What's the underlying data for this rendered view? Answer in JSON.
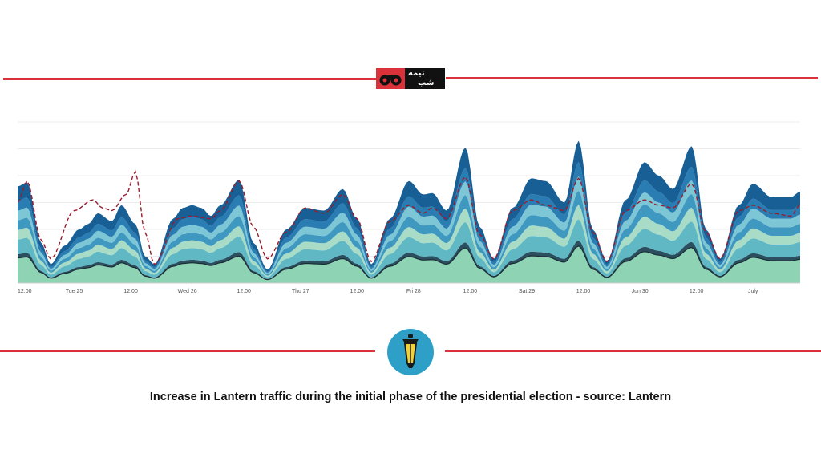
{
  "brand": {
    "logo_text_top": "نیمه",
    "logo_text_bottom": "شب",
    "logo_icon": "binoculars-icon",
    "badge_icon": "lantern-icon",
    "accent": "#d9323a",
    "badge_color": "#2ea0c8"
  },
  "caption": "Increase in Lantern traffic during the initial phase of the presidential election - source: Lantern",
  "chart_data": {
    "type": "area",
    "stacked": true,
    "grid": true,
    "legend": "none",
    "title": "",
    "xlabel": "",
    "ylabel": "",
    "x_ticks": [
      "12:00",
      "Tue 25",
      "12:00",
      "Wed 26",
      "12:00",
      "Thu 27",
      "12:00",
      "Fri 28",
      "12:00",
      "Sat 29",
      "12:00",
      "Jun 30",
      "12:00",
      "July"
    ],
    "x_hours": [
      0,
      12,
      24,
      36,
      48,
      60,
      72,
      84,
      96,
      108,
      120,
      132,
      144,
      156
    ],
    "x_range": [
      0,
      166
    ],
    "ylim": [
      0,
      6
    ],
    "total_keypoints": [
      [
        0,
        3.6
      ],
      [
        2,
        3.75
      ],
      [
        5,
        1.5
      ],
      [
        7,
        0.7
      ],
      [
        10,
        1.4
      ],
      [
        13,
        2.0
      ],
      [
        15,
        2.2
      ],
      [
        17,
        2.6
      ],
      [
        20,
        2.3
      ],
      [
        22,
        2.9
      ],
      [
        25,
        2.2
      ],
      [
        27,
        1.0
      ],
      [
        29,
        0.7
      ],
      [
        33,
        2.4
      ],
      [
        35,
        2.8
      ],
      [
        37,
        2.9
      ],
      [
        39,
        2.8
      ],
      [
        41,
        2.5
      ],
      [
        43,
        2.9
      ],
      [
        47,
        3.85
      ],
      [
        50,
        1.5
      ],
      [
        53,
        0.5
      ],
      [
        57,
        2.0
      ],
      [
        61,
        2.8
      ],
      [
        65,
        2.7
      ],
      [
        69,
        3.5
      ],
      [
        72,
        2.4
      ],
      [
        75,
        0.7
      ],
      [
        79,
        2.4
      ],
      [
        83,
        3.8
      ],
      [
        86,
        3.3
      ],
      [
        88,
        3.35
      ],
      [
        91,
        2.7
      ],
      [
        95,
        5.05
      ],
      [
        98,
        2.1
      ],
      [
        101,
        0.9
      ],
      [
        105,
        2.8
      ],
      [
        109,
        3.9
      ],
      [
        112,
        3.8
      ],
      [
        116,
        3.0
      ],
      [
        119,
        5.3
      ],
      [
        122,
        2.0
      ],
      [
        125,
        0.8
      ],
      [
        129,
        3.1
      ],
      [
        133,
        4.5
      ],
      [
        136,
        4.0
      ],
      [
        139,
        3.5
      ],
      [
        143,
        5.1
      ],
      [
        146,
        2.0
      ],
      [
        149,
        0.9
      ],
      [
        153,
        2.9
      ],
      [
        156,
        3.7
      ],
      [
        160,
        3.2
      ],
      [
        164,
        3.2
      ],
      [
        166,
        3.4
      ]
    ],
    "series": [
      {
        "values_share": 0.26
      },
      {
        "values_share": 0.04
      },
      {
        "values_share": 0.15
      },
      {
        "values_share": 0.1
      },
      {
        "values_share": 0.1
      },
      {
        "values_share": 0.1
      },
      {
        "values_share": 0.1
      },
      {
        "values_share": 0.15
      }
    ],
    "dashed_reference_keypoints": [
      [
        0,
        3.0
      ],
      [
        2,
        3.8
      ],
      [
        5,
        1.6
      ],
      [
        7,
        0.9
      ],
      [
        12,
        2.7
      ],
      [
        16,
        3.1
      ],
      [
        18,
        2.8
      ],
      [
        20,
        2.7
      ],
      [
        23,
        3.3
      ],
      [
        25,
        4.15
      ],
      [
        27,
        1.9
      ],
      [
        29,
        0.7
      ],
      [
        34,
        2.4
      ],
      [
        37,
        2.5
      ],
      [
        41,
        2.4
      ],
      [
        43,
        2.7
      ],
      [
        47,
        3.8
      ],
      [
        50,
        2.1
      ],
      [
        53,
        0.9
      ],
      [
        57,
        1.9
      ],
      [
        61,
        2.8
      ],
      [
        65,
        2.6
      ],
      [
        69,
        3.3
      ],
      [
        72,
        2.4
      ],
      [
        75,
        0.8
      ],
      [
        79,
        2.3
      ],
      [
        83,
        2.9
      ],
      [
        86,
        2.6
      ],
      [
        88,
        2.8
      ],
      [
        91,
        2.4
      ],
      [
        95,
        3.95
      ],
      [
        98,
        1.8
      ],
      [
        101,
        0.9
      ],
      [
        105,
        2.7
      ],
      [
        109,
        3.1
      ],
      [
        112,
        2.9
      ],
      [
        116,
        2.7
      ],
      [
        119,
        3.9
      ],
      [
        122,
        1.9
      ],
      [
        125,
        0.8
      ],
      [
        129,
        2.7
      ],
      [
        133,
        3.1
      ],
      [
        136,
        2.9
      ],
      [
        139,
        2.8
      ],
      [
        143,
        3.7
      ],
      [
        146,
        1.9
      ],
      [
        149,
        0.9
      ],
      [
        153,
        2.7
      ],
      [
        156,
        2.9
      ],
      [
        160,
        2.6
      ],
      [
        164,
        2.5
      ],
      [
        166,
        2.9
      ]
    ]
  }
}
